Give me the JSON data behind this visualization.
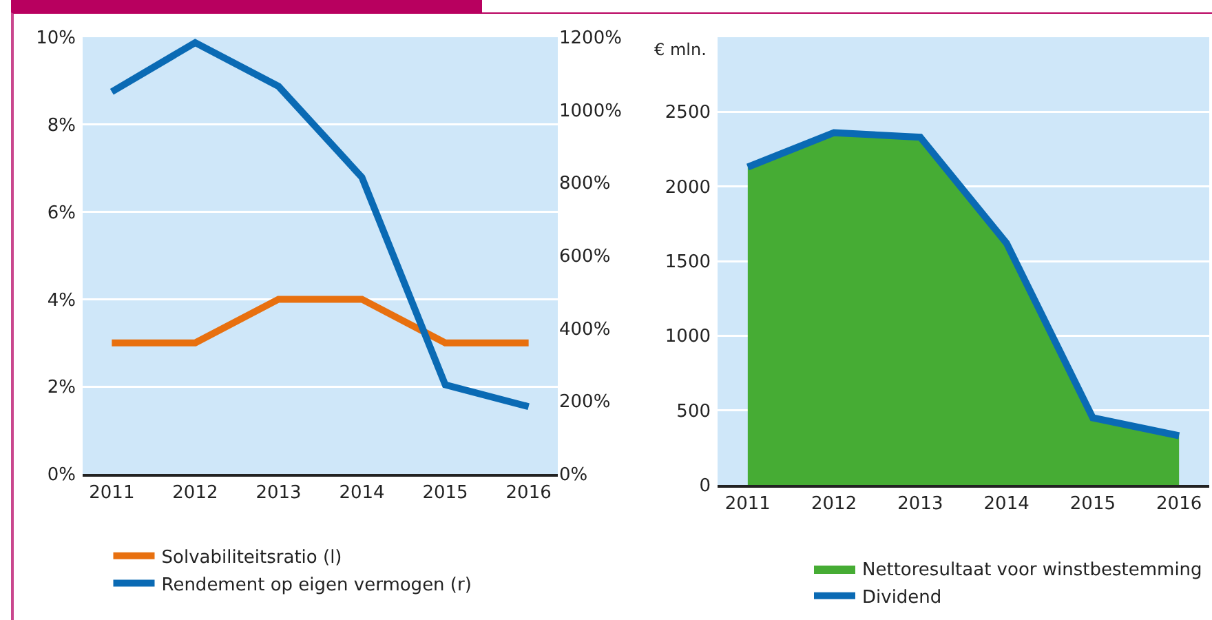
{
  "chart_data": [
    {
      "type": "line",
      "categories": [
        "2011",
        "2012",
        "2013",
        "2014",
        "2015",
        "2016"
      ],
      "series": [
        {
          "name": "Solvabiliteitsratio (l)",
          "color": "#e8700f",
          "values": [
            3,
            3,
            4,
            4,
            3,
            3
          ]
        },
        {
          "name": "Rendement op eigen vermogen (r)",
          "color": "#0a6ab4",
          "axis": "y2",
          "values": [
            1050,
            1185,
            1065,
            815,
            245,
            185
          ]
        }
      ],
      "ylim": [
        0,
        10
      ],
      "yticks": [
        {
          "value": 0,
          "label": "0%"
        },
        {
          "value": 2,
          "label": "2%"
        },
        {
          "value": 4,
          "label": "4%"
        },
        {
          "value": 6,
          "label": "6%"
        },
        {
          "value": 8,
          "label": "8%"
        },
        {
          "value": 10,
          "label": "10%"
        }
      ],
      "y2lim": [
        0,
        1200
      ],
      "y2ticks": [
        {
          "value": 0,
          "label": "0%"
        },
        {
          "value": 200,
          "label": "200%"
        },
        {
          "value": 400,
          "label": "400%"
        },
        {
          "value": 600,
          "label": "600%"
        },
        {
          "value": 800,
          "label": "800%"
        },
        {
          "value": 1000,
          "label": "1000%"
        },
        {
          "value": 1200,
          "label": "1200%"
        }
      ],
      "grid": "y",
      "legend": "bottom left",
      "line_style": "solid"
    },
    {
      "type": "area",
      "categories": [
        "2011",
        "2012",
        "2013",
        "2014",
        "2015",
        "2016"
      ],
      "ylabel": "€ mln.",
      "series": [
        {
          "name": "Nettoresultaat voor winstbestemming",
          "color": "#46ac34",
          "values": [
            2130,
            2360,
            2330,
            1620,
            450,
            330
          ]
        },
        {
          "name": "Dividend",
          "type": "line",
          "color": "#0a6ab4",
          "values": [
            2130,
            2360,
            2330,
            1620,
            450,
            330
          ]
        }
      ],
      "ylim": [
        0,
        3000
      ],
      "yticks": [
        0,
        500,
        1000,
        1500,
        2000,
        2500
      ],
      "grid": "y",
      "legend": "bottom right",
      "line_style": "solid"
    }
  ]
}
